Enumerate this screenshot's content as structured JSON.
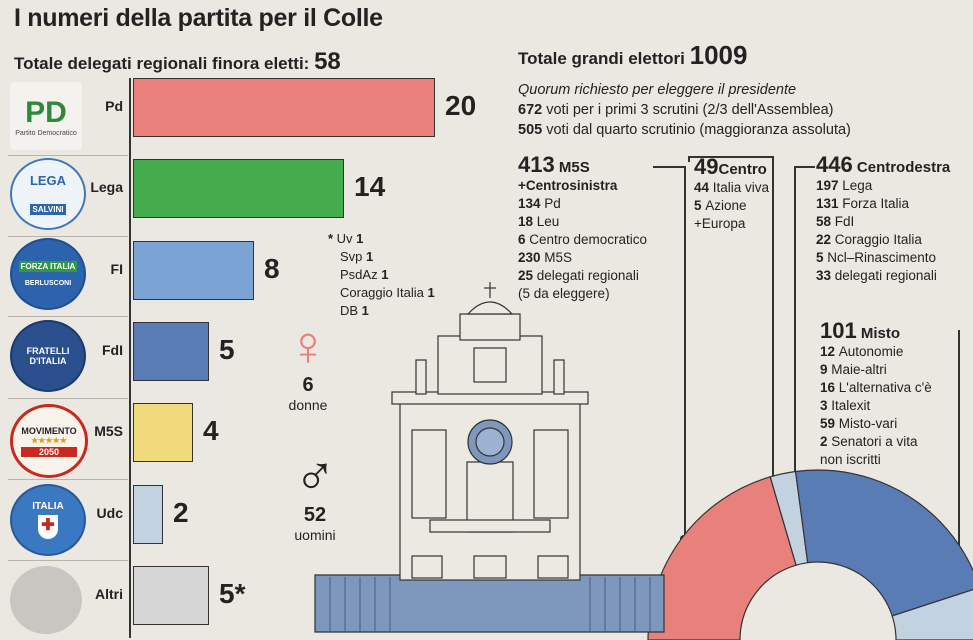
{
  "title": "I numeri della partita per il Colle",
  "left_panel": {
    "subtitle_label": "Totale delegati regionali finora eletti:",
    "subtitle_value": "58",
    "note": [
      {
        "name": "Uv",
        "value": "1"
      },
      {
        "name": "Svp",
        "value": "1"
      },
      {
        "name": "PsdAz",
        "value": "1"
      },
      {
        "name": "Coraggio Italia",
        "value": "1"
      },
      {
        "name": "DB",
        "value": "1"
      }
    ],
    "note_marker": "*",
    "women": {
      "value": "6",
      "label": "donne"
    },
    "men": {
      "value": "52",
      "label": "uomini"
    },
    "logos": {
      "pd": "PD",
      "pd_caption": "Partito Democratico",
      "lega": "LEGA",
      "lega_caption": "SALVINI",
      "fi": "FORZA ITALIA",
      "fi_caption": "BERLUSCONI",
      "fdi": "FRATELLI D'ITALIA",
      "m5s": "MOVIMENTO",
      "m5s_caption": "2050",
      "udc": "ITALIA"
    }
  },
  "chart_data": {
    "type": "bar",
    "orientation": "horizontal",
    "categories": [
      "Pd",
      "Lega",
      "FI",
      "FdI",
      "M5S",
      "Udc",
      "Altri"
    ],
    "values": [
      20,
      14,
      8,
      5,
      4,
      2,
      5
    ],
    "value_labels": [
      "20",
      "14",
      "8",
      "5",
      "4",
      "2",
      "5*"
    ],
    "colors": [
      "#e8817b",
      "#44ac4c",
      "#7ba4d4",
      "#5a7cb4",
      "#f1da7c",
      "#c3d2e0",
      "#d6d6d6"
    ]
  },
  "right_panel": {
    "total_label": "Totale grandi elettori",
    "total_value": "1009",
    "quorum_title": "Quorum richiesto per eleggere il presidente",
    "quorum_lines": [
      {
        "value": "672",
        "text": "voti per i primi 3 scrutini (2/3 dell'Assemblea)"
      },
      {
        "value": "505",
        "text": "voti dal quarto scrutinio (maggioranza assoluta)"
      }
    ],
    "groups": {
      "m5s": {
        "value": "413",
        "name": "M5S",
        "subname": "+Centrosinistra",
        "items": [
          {
            "value": "134",
            "label": "Pd"
          },
          {
            "value": "18",
            "label": "Leu"
          },
          {
            "value": "6",
            "label": "Centro democratico"
          },
          {
            "value": "230",
            "label": "M5S"
          },
          {
            "value": "25",
            "label": "delegati regionali"
          }
        ],
        "footnote": "(5 da eleggere)"
      },
      "centro": {
        "value": "49",
        "name": "Centro",
        "items": [
          {
            "value": "44",
            "label": "Italia viva"
          },
          {
            "value": "5",
            "label": "Azione"
          }
        ],
        "footnote": "+Europa"
      },
      "cdx": {
        "value": "446",
        "name": "Centrodestra",
        "items": [
          {
            "value": "197",
            "label": "Lega"
          },
          {
            "value": "131",
            "label": "Forza Italia"
          },
          {
            "value": "58",
            "label": "FdI"
          },
          {
            "value": "22",
            "label": "Coraggio Italia"
          },
          {
            "value": "5",
            "label": "Ncl–Rinascimento"
          },
          {
            "value": "33",
            "label": "delegati regionali"
          }
        ]
      },
      "misto": {
        "value": "101",
        "name": "Misto",
        "items": [
          {
            "value": "12",
            "label": "Autonomie"
          },
          {
            "value": "9",
            "label": "Maie-altri"
          },
          {
            "value": "16",
            "label": "L'alternativa c'è"
          },
          {
            "value": "3",
            "label": "Italexit"
          },
          {
            "value": "59",
            "label": "Misto-vari"
          },
          {
            "value": "2",
            "label": "Senatori a vita"
          }
        ],
        "footnote": "non iscritti"
      }
    },
    "hemicycle": {
      "type": "pie",
      "segments": [
        {
          "name": "M5S +Centrosinistra",
          "value": 413,
          "color": "#e8817b"
        },
        {
          "name": "Centro",
          "value": 49,
          "color": "#c3d2e0"
        },
        {
          "name": "Centrodestra",
          "value": 446,
          "color": "#5a7cb4"
        },
        {
          "name": "Misto",
          "value": 101,
          "color": "#c3d2e0"
        }
      ]
    }
  }
}
